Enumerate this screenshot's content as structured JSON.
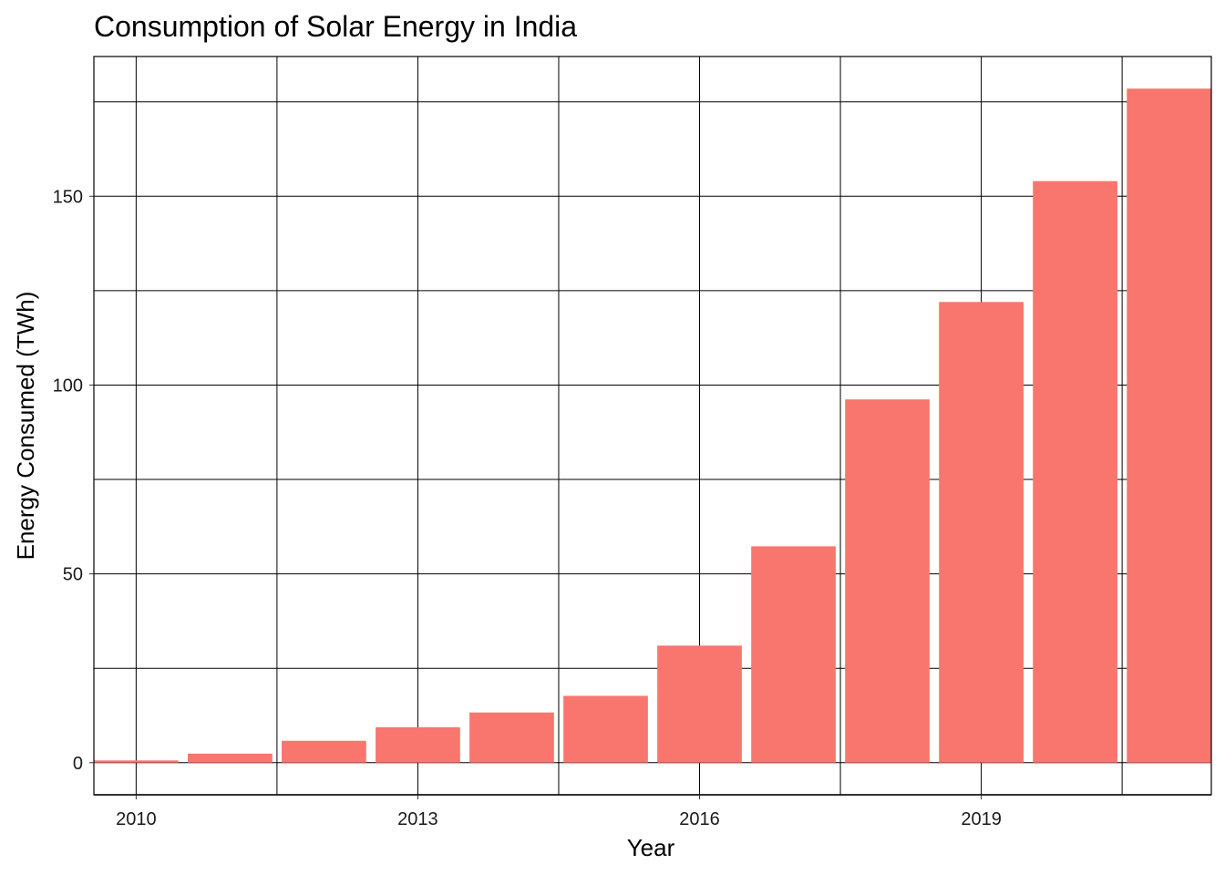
{
  "chart_data": {
    "type": "bar",
    "title": "Consumption of Solar Energy in India",
    "xlabel": "Year",
    "ylabel": "Energy Consumed (TWh)",
    "categories": [
      2010,
      2011,
      2012,
      2013,
      2014,
      2015,
      2016,
      2017,
      2018,
      2019,
      2020,
      2021
    ],
    "values": [
      0.6,
      2.4,
      5.8,
      9.4,
      13.3,
      17.7,
      31.0,
      57.3,
      96.2,
      122.0,
      154.0,
      178.5
    ],
    "x_ticks": [
      "2010",
      "2013",
      "2016",
      "2019"
    ],
    "y_ticks": [
      "0",
      "50",
      "100",
      "150"
    ],
    "y_tick_values": [
      0,
      50,
      100,
      150
    ],
    "xlim": [
      2009.55,
      2021.45
    ],
    "ylim": [
      -8.5,
      187
    ],
    "bar_color": "#F8766D",
    "grid": true
  }
}
